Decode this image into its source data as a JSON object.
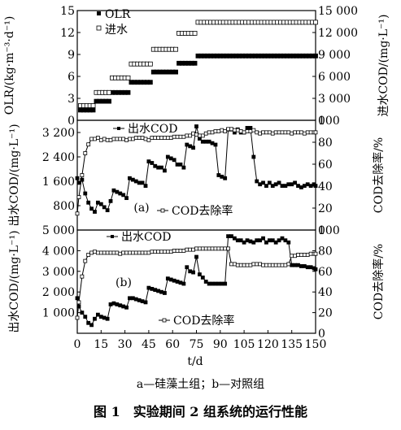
{
  "caption": {
    "subtitle": "a—硅藻土组；b—对照组",
    "title": "图 1　实验期间 2 组系统的运行性能"
  },
  "shared_x": {
    "label": "t/d",
    "ticks": [
      "0",
      "15",
      "30",
      "45",
      "60",
      "75",
      "90",
      "105",
      "120",
      "135",
      "150"
    ],
    "range": [
      0,
      150
    ]
  },
  "chart_data": [
    {
      "type": "scatter",
      "panel": "top",
      "title": "",
      "ylabel_left": "OLR/(kg·m⁻³·d⁻¹)",
      "ylabel_right": "进水COD/(mg·L⁻¹)",
      "yticks_left": [
        "0",
        "3",
        "6",
        "9",
        "12",
        "15"
      ],
      "yticks_right": [
        "0",
        "3 000",
        "6 000",
        "9 000",
        "12 000",
        "15 000"
      ],
      "ylim_left": [
        0,
        15
      ],
      "ylim_right": [
        0,
        15000
      ],
      "legend": [
        "OLR",
        "进水"
      ],
      "series": [
        {
          "name": "OLR",
          "axis": "left",
          "marker": "filled-square",
          "x": [
            2,
            4,
            6,
            8,
            10,
            12,
            14,
            16,
            18,
            20,
            22,
            24,
            26,
            28,
            30,
            32,
            34,
            36,
            38,
            40,
            42,
            44,
            46,
            48,
            50,
            52,
            54,
            56,
            58,
            60,
            62,
            64,
            66,
            68,
            70,
            72,
            74,
            76,
            78,
            80,
            82,
            84,
            86,
            88,
            90,
            92,
            94,
            96,
            98,
            100,
            102,
            104,
            106,
            108,
            110,
            112,
            114,
            116,
            118,
            120,
            122,
            124,
            126,
            128,
            130,
            132,
            134,
            136,
            138,
            140,
            142,
            144,
            146,
            148,
            150
          ],
          "y": [
            1.4,
            1.4,
            1.4,
            1.4,
            1.4,
            2.6,
            2.6,
            2.6,
            2.6,
            2.6,
            3.8,
            3.8,
            3.8,
            3.8,
            3.8,
            3.8,
            5.2,
            5.2,
            5.2,
            5.2,
            5.2,
            5.2,
            5.2,
            6.6,
            6.6,
            6.6,
            6.6,
            6.6,
            6.6,
            6.6,
            6.6,
            7.8,
            7.8,
            7.8,
            7.8,
            7.8,
            7.8,
            8.8,
            8.8,
            8.8,
            8.8,
            8.8,
            8.8,
            8.8,
            8.8,
            8.8,
            8.8,
            8.8,
            8.8,
            8.8,
            8.8,
            8.8,
            8.8,
            8.8,
            8.8,
            8.8,
            8.8,
            8.8,
            8.8,
            8.8,
            8.8,
            8.8,
            8.8,
            8.8,
            8.8,
            8.8,
            8.8,
            8.8,
            8.8,
            8.8,
            8.8,
            8.8,
            8.8,
            8.8,
            8.8
          ]
        },
        {
          "name": "进水",
          "axis": "right",
          "marker": "open-square",
          "x": [
            2,
            4,
            6,
            8,
            10,
            12,
            14,
            16,
            18,
            20,
            22,
            24,
            26,
            28,
            30,
            32,
            34,
            36,
            38,
            40,
            42,
            44,
            46,
            48,
            50,
            52,
            54,
            56,
            58,
            60,
            62,
            64,
            66,
            68,
            70,
            72,
            74,
            76,
            78,
            80,
            82,
            84,
            86,
            88,
            90,
            92,
            94,
            96,
            98,
            100,
            102,
            104,
            106,
            108,
            110,
            112,
            114,
            116,
            118,
            120,
            122,
            124,
            126,
            128,
            130,
            132,
            134,
            136,
            138,
            140,
            142,
            144,
            146,
            148,
            150
          ],
          "y": [
            2000,
            2000,
            2000,
            2000,
            2000,
            3800,
            3800,
            3800,
            3800,
            3800,
            5800,
            5800,
            5800,
            5800,
            5800,
            5800,
            7700,
            7700,
            7700,
            7700,
            7700,
            7700,
            7700,
            9700,
            9700,
            9700,
            9700,
            9700,
            9700,
            9700,
            9700,
            11900,
            11900,
            11900,
            11900,
            11900,
            11900,
            13400,
            13400,
            13400,
            13400,
            13400,
            13400,
            13400,
            13400,
            13400,
            13400,
            13400,
            13400,
            13400,
            13400,
            13400,
            13400,
            13400,
            13400,
            13400,
            13400,
            13400,
            13400,
            13400,
            13400,
            13400,
            13400,
            13400,
            13400,
            13400,
            13400,
            13400,
            13400,
            13400,
            13400,
            13400,
            13400,
            13400,
            13400
          ]
        }
      ]
    },
    {
      "type": "line",
      "panel": "a",
      "panel_label": "(a)",
      "ylabel_left": "出水COD/(mg·L⁻¹)",
      "ylabel_right": "COD去除率/%",
      "yticks_left": [
        "0",
        "800",
        "1 600",
        "2 400",
        "3 200"
      ],
      "yticks_right": [
        "0",
        "20",
        "40",
        "60",
        "80",
        "100"
      ],
      "ylim_left": [
        0,
        3600
      ],
      "ylim_right": [
        0,
        100
      ],
      "series": [
        {
          "name": "出水COD",
          "axis": "left",
          "marker": "filled-square",
          "x": [
            0,
            1,
            3,
            5,
            7,
            9,
            11,
            13,
            15,
            17,
            19,
            21,
            23,
            25,
            27,
            29,
            31,
            33,
            35,
            37,
            39,
            41,
            43,
            45,
            47,
            49,
            51,
            53,
            55,
            57,
            59,
            61,
            63,
            65,
            67,
            69,
            71,
            73,
            75,
            77,
            79,
            81,
            83,
            85,
            87,
            89,
            91,
            93,
            95,
            97,
            99,
            101,
            103,
            105,
            107,
            109,
            111,
            113,
            115,
            117,
            119,
            121,
            123,
            125,
            127,
            129,
            131,
            133,
            135,
            137,
            139,
            141,
            143,
            145,
            147,
            149,
            150
          ],
          "y": [
            1700,
            1550,
            1650,
            1200,
            900,
            700,
            600,
            900,
            850,
            750,
            650,
            950,
            1300,
            1250,
            1200,
            1150,
            1050,
            1700,
            1650,
            1600,
            1550,
            1550,
            1450,
            2250,
            2200,
            2100,
            2050,
            2050,
            1950,
            2400,
            2350,
            2300,
            2150,
            2150,
            2050,
            2800,
            2750,
            2700,
            3400,
            3000,
            2900,
            2900,
            2900,
            2850,
            2800,
            1800,
            1750,
            1700,
            3300,
            3300,
            3200,
            3300,
            3200,
            3200,
            3350,
            3350,
            2400,
            1600,
            1500,
            1550,
            1450,
            1550,
            1450,
            1500,
            1550,
            1450,
            1450,
            1500,
            1500,
            1550,
            1450,
            1400,
            1450,
            1500,
            1450,
            1500,
            1450
          ]
        },
        {
          "name": "COD去除率",
          "axis": "right",
          "marker": "open-square",
          "x": [
            0,
            1,
            3,
            5,
            7,
            9,
            11,
            13,
            15,
            17,
            19,
            21,
            23,
            25,
            27,
            29,
            31,
            33,
            35,
            37,
            39,
            41,
            43,
            45,
            47,
            49,
            51,
            53,
            55,
            57,
            59,
            61,
            63,
            65,
            67,
            69,
            71,
            73,
            75,
            77,
            79,
            81,
            83,
            85,
            87,
            89,
            91,
            93,
            95,
            97,
            99,
            101,
            103,
            105,
            107,
            109,
            111,
            113,
            115,
            117,
            119,
            121,
            123,
            125,
            127,
            129,
            131,
            133,
            135,
            137,
            139,
            141,
            143,
            145,
            147,
            149,
            150
          ],
          "y": [
            15,
            30,
            50,
            70,
            78,
            83,
            83,
            84,
            82,
            83,
            82,
            82,
            83,
            83,
            83,
            83,
            82,
            83,
            83,
            84,
            84,
            84,
            83,
            82,
            84,
            84,
            84,
            84,
            84,
            84,
            84,
            85,
            85,
            85,
            85,
            86,
            86,
            88,
            87,
            86,
            86,
            88,
            89,
            89,
            90,
            90,
            91,
            90,
            92,
            92,
            91,
            91,
            90,
            89,
            90,
            90,
            91,
            89,
            88,
            89,
            89,
            89,
            88,
            89,
            89,
            89,
            89,
            89,
            88,
            89,
            89,
            89,
            88,
            89,
            89,
            89,
            89
          ]
        }
      ]
    },
    {
      "type": "line",
      "panel": "b",
      "panel_label": "(b)",
      "ylabel_left": "出水COD/(mg·L⁻¹)",
      "ylabel_right": "COD去除率/%",
      "yticks_left": [
        "0",
        "1 000",
        "2 000",
        "3 000",
        "4 000",
        "5 000"
      ],
      "yticks_right": [
        "0",
        "20",
        "40",
        "60",
        "80",
        "100"
      ],
      "ylim_left": [
        0,
        5000
      ],
      "ylim_right": [
        0,
        100
      ],
      "series": [
        {
          "name": "出水COD",
          "axis": "left",
          "marker": "filled-square",
          "x": [
            0,
            1,
            3,
            5,
            7,
            9,
            11,
            13,
            15,
            17,
            19,
            21,
            23,
            25,
            27,
            29,
            31,
            33,
            35,
            37,
            39,
            41,
            43,
            45,
            47,
            49,
            51,
            53,
            55,
            57,
            59,
            61,
            63,
            65,
            67,
            69,
            71,
            73,
            75,
            77,
            79,
            81,
            83,
            85,
            87,
            89,
            91,
            93,
            95,
            97,
            99,
            101,
            103,
            105,
            107,
            109,
            111,
            113,
            115,
            117,
            119,
            121,
            123,
            125,
            127,
            129,
            131,
            133,
            135,
            137,
            139,
            141,
            143,
            145,
            147,
            149,
            150
          ],
          "y": [
            1700,
            1300,
            1000,
            800,
            500,
            400,
            700,
            900,
            800,
            750,
            700,
            1400,
            1450,
            1400,
            1350,
            1300,
            1250,
            1700,
            1700,
            1650,
            1600,
            1550,
            1500,
            2200,
            2150,
            2100,
            2050,
            2000,
            1950,
            2650,
            2600,
            2550,
            2500,
            2450,
            2400,
            3200,
            3000,
            2950,
            3700,
            2850,
            2700,
            2500,
            2400,
            2400,
            2400,
            2400,
            2400,
            2400,
            4700,
            4700,
            4600,
            4500,
            4500,
            4400,
            4500,
            4450,
            4400,
            4500,
            4500,
            4600,
            4400,
            4500,
            4500,
            4400,
            4500,
            4600,
            4500,
            4400,
            3300,
            3300,
            3300,
            3250,
            3250,
            3200,
            3200,
            3150,
            3100
          ]
        },
        {
          "name": "COD去除率",
          "axis": "right",
          "marker": "open-square",
          "x": [
            0,
            1,
            3,
            5,
            7,
            9,
            11,
            13,
            15,
            17,
            19,
            21,
            23,
            25,
            27,
            29,
            31,
            33,
            35,
            37,
            39,
            41,
            43,
            45,
            47,
            49,
            51,
            53,
            55,
            57,
            59,
            61,
            63,
            65,
            67,
            69,
            71,
            73,
            75,
            77,
            79,
            81,
            83,
            85,
            87,
            89,
            91,
            93,
            95,
            97,
            99,
            101,
            103,
            105,
            107,
            109,
            111,
            113,
            115,
            117,
            119,
            121,
            123,
            125,
            127,
            129,
            131,
            133,
            135,
            137,
            139,
            141,
            143,
            145,
            147,
            149,
            150
          ],
          "y": [
            15,
            30,
            55,
            70,
            76,
            78,
            79,
            78,
            78,
            78,
            78,
            78,
            78,
            78,
            77,
            78,
            78,
            78,
            78,
            78,
            78,
            78,
            78,
            78,
            79,
            79,
            79,
            79,
            79,
            79,
            79,
            80,
            80,
            80,
            80,
            81,
            81,
            81,
            82,
            82,
            82,
            82,
            82,
            82,
            82,
            82,
            82,
            82,
            82,
            67,
            67,
            66,
            66,
            66,
            66,
            66,
            67,
            67,
            67,
            66,
            66,
            66,
            66,
            66,
            66,
            66,
            66,
            67,
            75,
            75,
            76,
            76,
            76,
            76,
            77,
            77,
            77
          ]
        }
      ]
    }
  ]
}
